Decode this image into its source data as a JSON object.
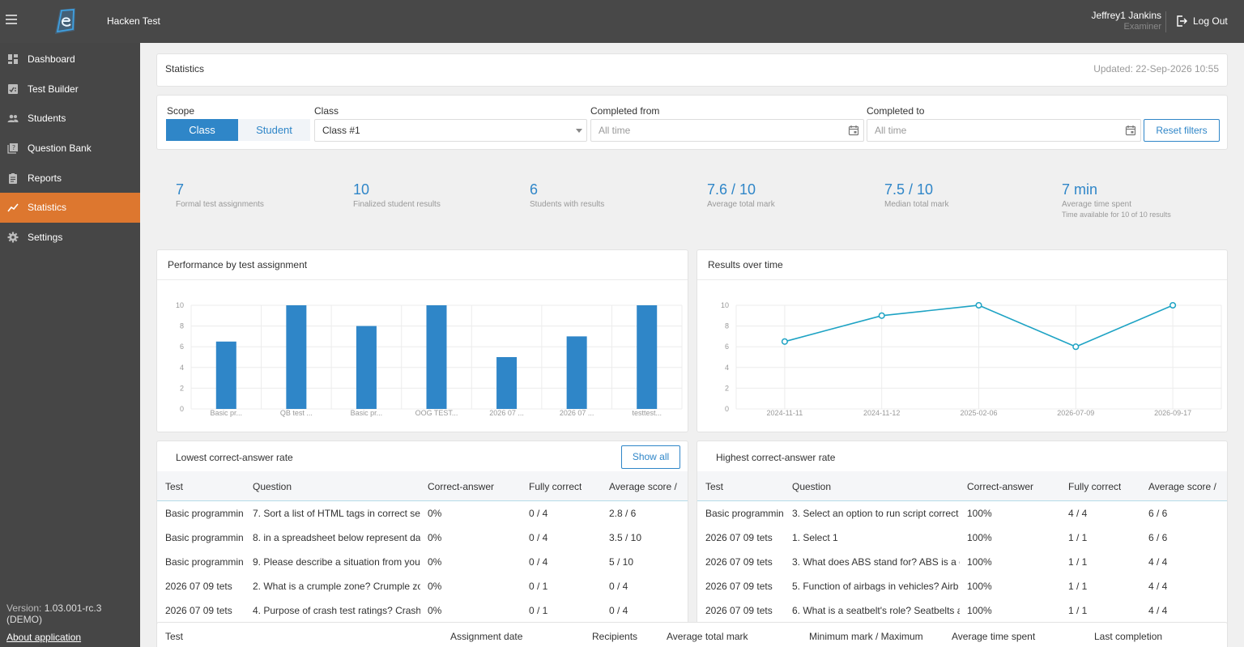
{
  "topbar": {
    "app_title": "Hacken Test",
    "user_name": "Jeffrey1 Jankins",
    "user_role": "Examiner",
    "logout_label": "Log Out"
  },
  "sidebar": {
    "items": [
      {
        "label": "Dashboard",
        "icon": "dashboard-icon"
      },
      {
        "label": "Test Builder",
        "icon": "test-builder-icon"
      },
      {
        "label": "Students",
        "icon": "students-icon"
      },
      {
        "label": "Question Bank",
        "icon": "question-bank-icon"
      },
      {
        "label": "Reports",
        "icon": "reports-icon"
      },
      {
        "label": "Statistics",
        "icon": "statistics-icon",
        "active": true
      },
      {
        "label": "Settings",
        "icon": "settings-icon"
      }
    ],
    "version_label": "Version:",
    "version_value": "1.03.001-rc.3",
    "version_note": "(DEMO)",
    "about_label": "About application"
  },
  "header": {
    "title": "Statistics",
    "updated": "Updated: 22-Sep-2026 10:55"
  },
  "filters": {
    "scope_label": "Scope",
    "scope_options": [
      "Class",
      "Student"
    ],
    "scope_selected": "Class",
    "class_label": "Class",
    "class_value": "Class #1",
    "completed_from_label": "Completed from",
    "completed_from_placeholder": "All time",
    "completed_to_label": "Completed to",
    "completed_to_placeholder": "All time",
    "reset_label": "Reset filters"
  },
  "kpis": [
    {
      "value": "7",
      "label": "Formal test assignments"
    },
    {
      "value": "10",
      "label": "Finalized student results"
    },
    {
      "value": "6",
      "label": "Students with results"
    },
    {
      "value": "7.6 / 10",
      "label": "Average total mark"
    },
    {
      "value": "7.5 / 10",
      "label": "Median total mark"
    },
    {
      "value": "7 min",
      "label": "Average time spent",
      "sub": "Time available for 10 of 10 results"
    }
  ],
  "chart_data": [
    {
      "type": "bar",
      "title": "Performance by test assignment",
      "categories": [
        "Basic pr...",
        "QB test ...",
        "Basic pr...",
        "OOG TEST...",
        "2026 07 ...",
        "2026 07 ...",
        "testtest..."
      ],
      "values": [
        6.5,
        10,
        8,
        10,
        5,
        7,
        10
      ],
      "ylim": [
        0,
        10
      ],
      "yticks": [
        0,
        2,
        4,
        6,
        8,
        10
      ],
      "color": "#2f86c8",
      "grid": true
    },
    {
      "type": "line",
      "title": "Results over time",
      "x": [
        "2024-11-11",
        "2024-11-12",
        "2025-02-06",
        "2026-07-09",
        "2026-09-17"
      ],
      "values": [
        6.5,
        9,
        10,
        6,
        10
      ],
      "ylim": [
        0,
        10
      ],
      "yticks": [
        0,
        2,
        4,
        6,
        8,
        10
      ],
      "color": "#1ea3c4",
      "grid": true
    }
  ],
  "lowest": {
    "title": "Lowest correct-answer rate",
    "show_all_label": "Show all",
    "columns": [
      "Test",
      "Question",
      "Correct-answer",
      "Fully correct",
      "Average score /"
    ],
    "rows": [
      [
        "Basic programmin",
        "7. Sort a list of HTML tags in correct se",
        "0%",
        "0 / 4",
        "2.8 / 6"
      ],
      [
        "Basic programmin",
        "8. in a spreadsheet below represent da",
        "0%",
        "0 / 4",
        "3.5 / 10"
      ],
      [
        "Basic programmin",
        "9. Please describe a situation from you",
        "0%",
        "0 / 4",
        "5 / 10"
      ],
      [
        "2026 07 09 tets",
        "2. What is a crumple zone? Crumple zo",
        "0%",
        "0 / 1",
        "0 / 4"
      ],
      [
        "2026 07 09 tets",
        "4. Purpose of crash test ratings? Crash",
        "0%",
        "0 / 1",
        "0 / 4"
      ]
    ]
  },
  "highest": {
    "title": "Highest correct-answer rate",
    "columns": [
      "Test",
      "Question",
      "Correct-answer",
      "Fully correct",
      "Average score /"
    ],
    "rows": [
      [
        "Basic programmin",
        "3. Select an option to run script correct",
        "100%",
        "4 / 4",
        "6 / 6"
      ],
      [
        "2026 07 09 tets",
        "1. Select 1",
        "100%",
        "1 / 1",
        "6 / 6"
      ],
      [
        "2026 07 09 tets",
        "3. What does ABS stand for? ABS is a c",
        "100%",
        "1 / 1",
        "4 / 4"
      ],
      [
        "2026 07 09 tets",
        "5. Function of airbags in vehicles? Airb",
        "100%",
        "1 / 1",
        "4 / 4"
      ],
      [
        "2026 07 09 tets",
        "6. What is a seatbelt's role? Seatbelts a",
        "100%",
        "1 / 1",
        "4 / 4"
      ]
    ]
  },
  "assignments_table": {
    "columns": [
      "Test",
      "Assignment date",
      "Recipients",
      "Average total mark",
      "Minimum mark / Maximum",
      "Average time spent",
      "Last completion"
    ]
  }
}
